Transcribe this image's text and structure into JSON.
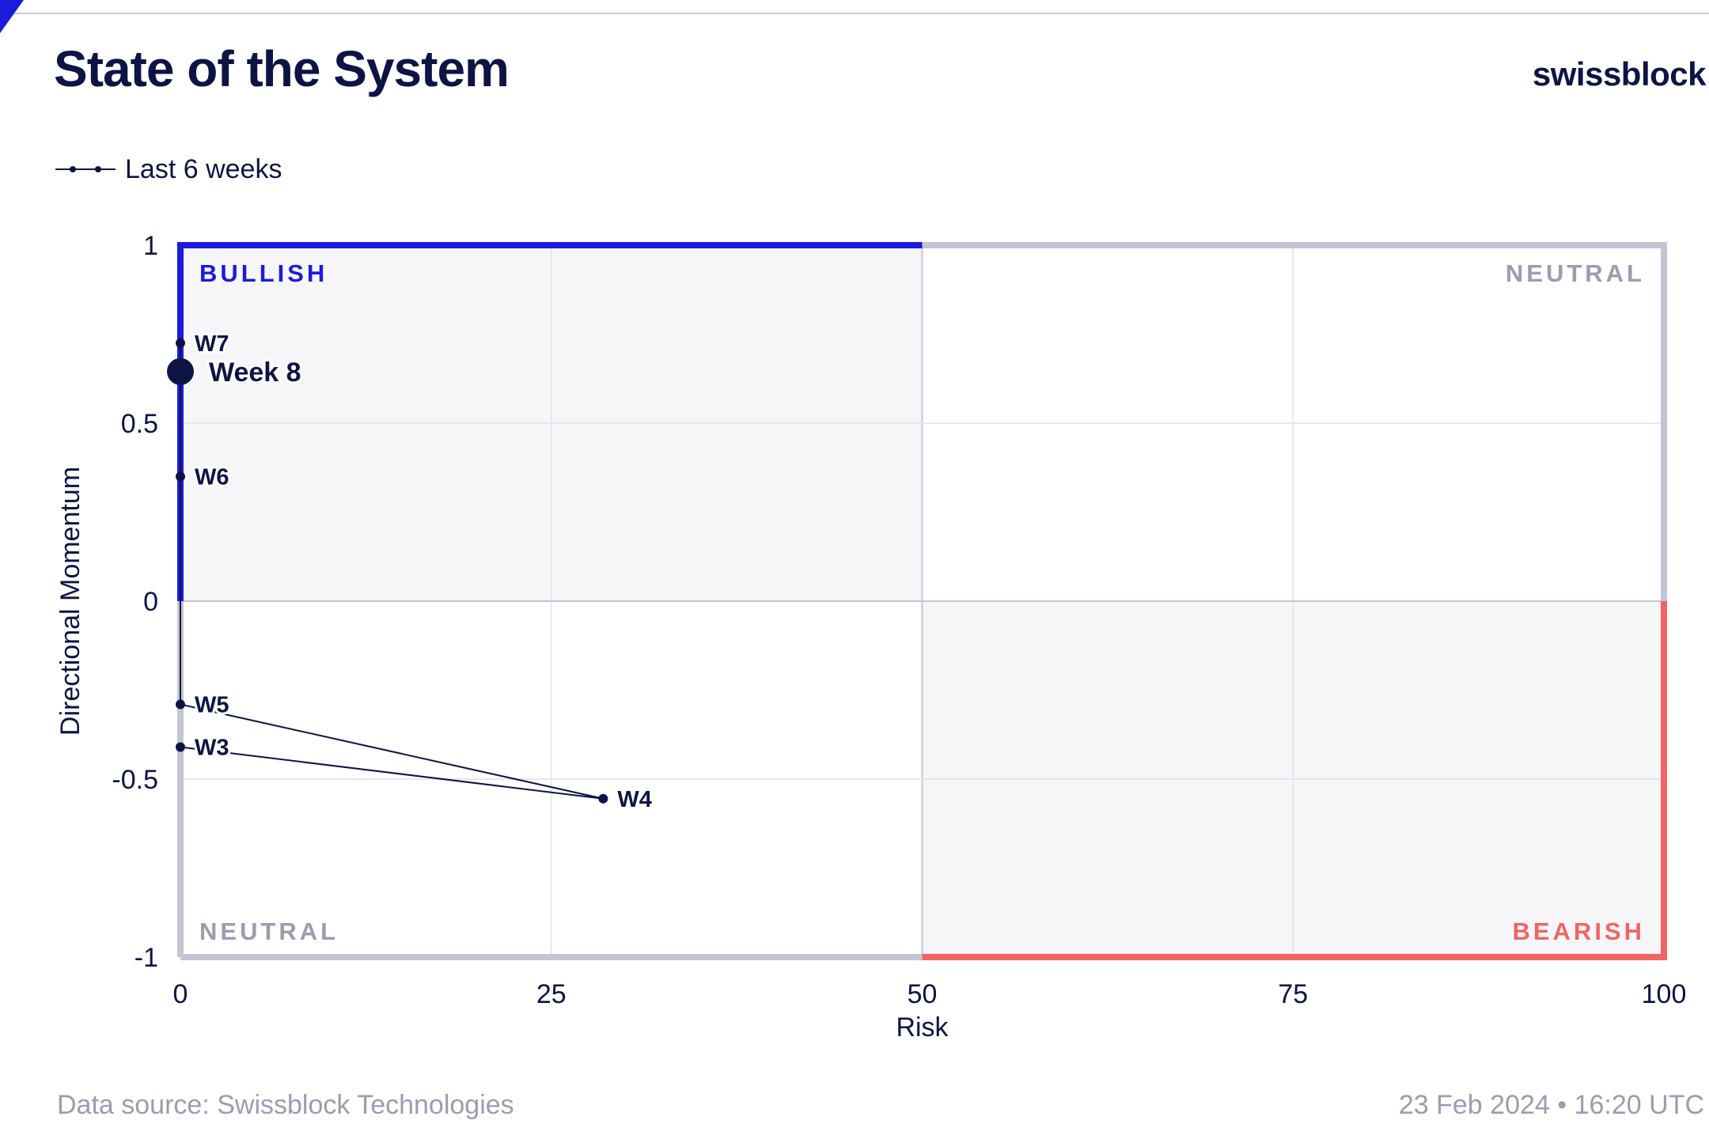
{
  "header": {
    "title": "State of the System",
    "brand": "swissblock"
  },
  "legend": {
    "label": "Last 6 weeks"
  },
  "footer": {
    "source": "Data source: Swissblock Technologies",
    "timestamp": "23 Feb 2024 • 16:20 UTC"
  },
  "colors": {
    "bullish": "#1b1bdc",
    "bearish": "#f26464",
    "neutral": "#c3c5d2",
    "neutral_label": "#9a9db0",
    "point": "#0d1445",
    "shaded": "#f6f6f8"
  },
  "chart_data": {
    "type": "scatter",
    "xlabel": "Risk",
    "ylabel": "Directional Momentum",
    "xlim": [
      0,
      100
    ],
    "ylim": [
      -1,
      1
    ],
    "x_ticks": [
      0,
      25,
      50,
      75,
      100
    ],
    "x_tick_labels": [
      "0",
      "25",
      "50",
      "75",
      "100"
    ],
    "y_ticks": [
      1,
      0.5,
      0,
      -0.5,
      -1
    ],
    "y_tick_labels": [
      "1",
      "0.5",
      "0",
      "-0.5",
      "-1"
    ],
    "grid": true,
    "quadrants": [
      {
        "label": "BULLISH",
        "position": "top-left",
        "color": "#1b1bdc"
      },
      {
        "label": "NEUTRAL",
        "position": "top-right",
        "color": "#9a9db0"
      },
      {
        "label": "NEUTRAL",
        "position": "bottom-left",
        "color": "#9a9db0"
      },
      {
        "label": "BEARISH",
        "position": "bottom-right",
        "color": "#f26464"
      }
    ],
    "series": [
      {
        "name": "Last 6 weeks",
        "points": [
          {
            "label": "W3",
            "x": 0,
            "y": -0.41
          },
          {
            "label": "W4",
            "x": 28.5,
            "y": -0.555
          },
          {
            "label": "W5",
            "x": 0,
            "y": -0.29
          },
          {
            "label": "W6",
            "x": 0,
            "y": 0.35
          },
          {
            "label": "W7",
            "x": 0,
            "y": 0.725
          },
          {
            "label": "Week 8",
            "x": 0,
            "y": 0.645,
            "current": true
          }
        ]
      }
    ]
  }
}
